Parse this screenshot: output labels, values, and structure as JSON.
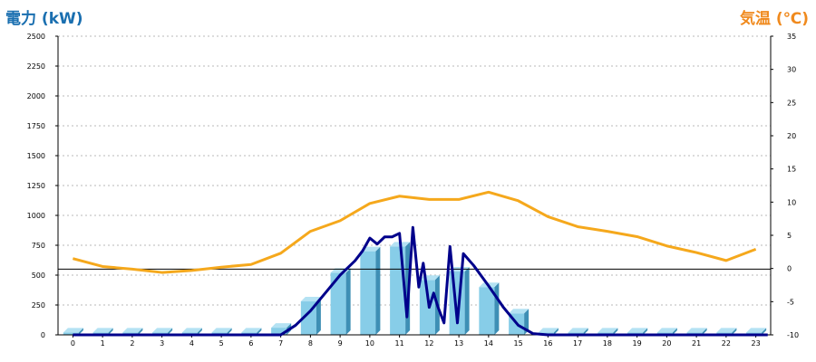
{
  "chart_data": {
    "type": "bar",
    "left_axis_title": "電力 (kW)",
    "right_axis_title": "気温 (℃)",
    "x": [
      0,
      1,
      2,
      3,
      4,
      5,
      6,
      7,
      8,
      9,
      10,
      11,
      12,
      13,
      14,
      15,
      16,
      17,
      18,
      19,
      20,
      21,
      22,
      23
    ],
    "y_left_ticks": [
      0,
      250,
      500,
      750,
      1000,
      1250,
      1500,
      1750,
      2000,
      2250,
      2500
    ],
    "y_right_ticks": [
      -10,
      -5,
      0,
      5,
      10,
      15,
      20,
      25,
      30,
      35
    ],
    "y_left_range": [
      0,
      2500
    ],
    "y_right_range": [
      -10,
      35
    ],
    "grid": true,
    "bars": {
      "axis": "left",
      "color": "#87cde8",
      "values": [
        20,
        20,
        20,
        20,
        20,
        20,
        20,
        60,
        280,
        520,
        700,
        740,
        460,
        530,
        400,
        180,
        20,
        20,
        20,
        20,
        20,
        20,
        20,
        20
      ]
    },
    "temperature_line": {
      "axis": "right",
      "color": "#f5a81c",
      "values": [
        1.5,
        0.3,
        -0.1,
        -0.6,
        -0.3,
        0.2,
        0.6,
        2.3,
        5.6,
        7.2,
        9.8,
        10.9,
        10.4,
        10.4,
        11.5,
        10.2,
        7.8,
        6.3,
        5.6,
        4.8,
        3.4,
        2.4,
        1.2,
        2.9
      ]
    },
    "power_line": {
      "axis": "left",
      "color": "#00008b",
      "points": [
        [
          0,
          0
        ],
        [
          7,
          0
        ],
        [
          7.5,
          80
        ],
        [
          8,
          200
        ],
        [
          8.5,
          350
        ],
        [
          9,
          500
        ],
        [
          9.5,
          620
        ],
        [
          9.75,
          700
        ],
        [
          10,
          810
        ],
        [
          10.25,
          760
        ],
        [
          10.5,
          820
        ],
        [
          10.75,
          820
        ],
        [
          11,
          850
        ],
        [
          11.25,
          150
        ],
        [
          11.45,
          900
        ],
        [
          11.65,
          400
        ],
        [
          11.8,
          600
        ],
        [
          12,
          230
        ],
        [
          12.15,
          350
        ],
        [
          12.3,
          230
        ],
        [
          12.5,
          100
        ],
        [
          12.7,
          740
        ],
        [
          12.95,
          100
        ],
        [
          13.15,
          680
        ],
        [
          13.5,
          580
        ],
        [
          14,
          410
        ],
        [
          14.5,
          230
        ],
        [
          15,
          80
        ],
        [
          15.5,
          10
        ],
        [
          16,
          0
        ],
        [
          23.4,
          0
        ]
      ]
    },
    "reference_line": {
      "axis": "left",
      "value": 550,
      "color": "#000000"
    }
  }
}
